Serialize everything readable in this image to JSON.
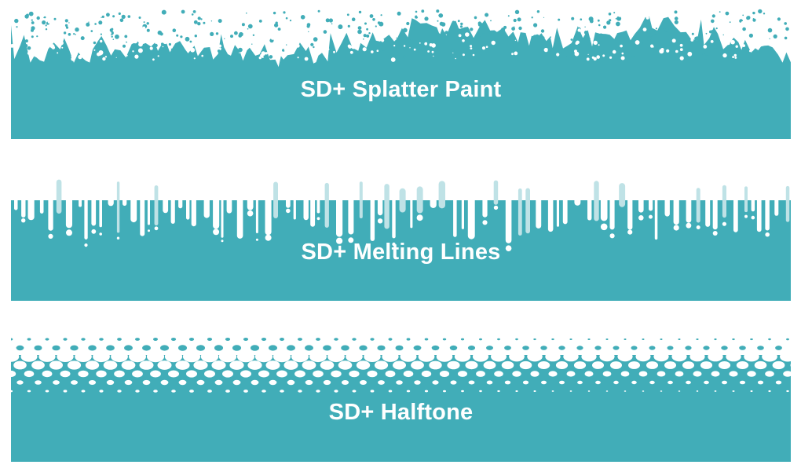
{
  "colors": {
    "teal": "#41adb8",
    "white": "#ffffff"
  },
  "panels": [
    {
      "label": "SD+ Splatter Paint",
      "effect": "splatter-paint"
    },
    {
      "label": "SD+ Melting Lines",
      "effect": "melting-lines"
    },
    {
      "label": "SD+ Halftone",
      "effect": "halftone"
    }
  ]
}
